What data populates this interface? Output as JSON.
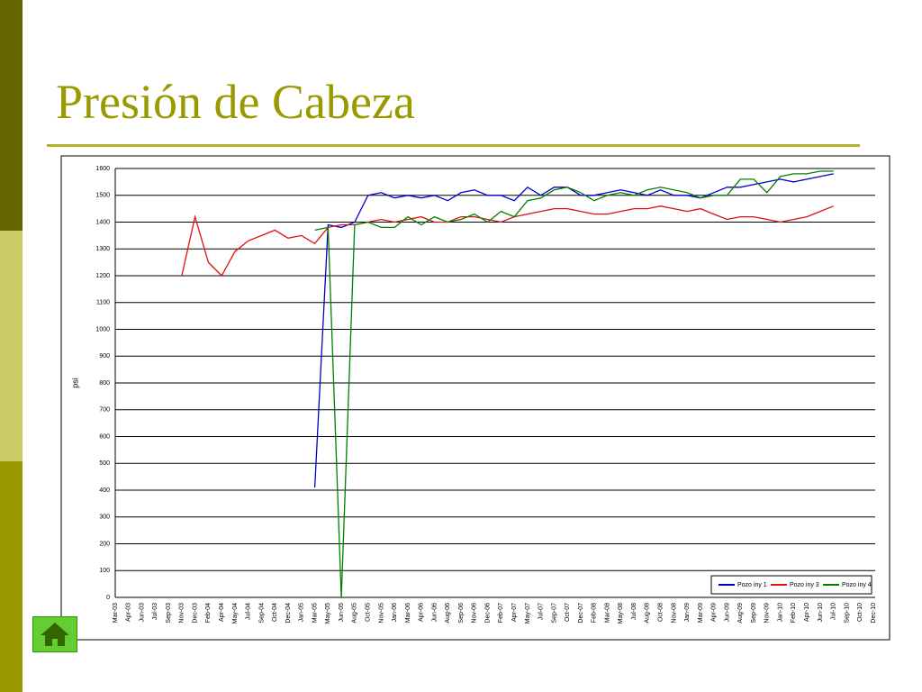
{
  "slide_title": "Presión de Cabeza",
  "chart_data": {
    "type": "line",
    "y_label": "psi",
    "categories": [
      "Mar-03",
      "Apr-03",
      "Jun-03",
      "Jul-03",
      "Sep-03",
      "Nov-03",
      "Dec-03",
      "Feb-04",
      "Apr-04",
      "May-04",
      "Jul-04",
      "Sep-04",
      "Oct-04",
      "Dec-04",
      "Jan-05",
      "Mar-05",
      "May-05",
      "Jun-05",
      "Aug-05",
      "Oct-05",
      "Nov-05",
      "Jan-06",
      "Mar-06",
      "Apr-06",
      "Jun-06",
      "Aug-06",
      "Sep-06",
      "Nov-06",
      "Dec-06",
      "Feb-07",
      "Apr-07",
      "May-07",
      "Jul-07",
      "Sep-07",
      "Oct-07",
      "Dec-07",
      "Feb-08",
      "Mar-08",
      "May-08",
      "Jul-08",
      "Aug-08",
      "Oct-08",
      "Nov-08",
      "Jan-09",
      "Mar-09",
      "Apr-09",
      "Jun-09",
      "Aug-09",
      "Sep-09",
      "Nov-09",
      "Jan-10",
      "Feb-10",
      "Apr-10",
      "Jun-10",
      "Jul-10",
      "Sep-10",
      "Oct-10",
      "Dec-10"
    ],
    "series": [
      {
        "name": "Pozo iny 1",
        "color": "#0000cc",
        "values": [
          null,
          null,
          null,
          null,
          null,
          null,
          null,
          null,
          null,
          null,
          null,
          null,
          null,
          null,
          null,
          410,
          1390,
          1380,
          1400,
          1500,
          1510,
          1490,
          1500,
          1490,
          1500,
          1480,
          1510,
          1520,
          1500,
          1500,
          1480,
          1530,
          1500,
          1530,
          1530,
          1500,
          1500,
          1510,
          1520,
          1510,
          1500,
          1520,
          1500,
          1500,
          1490,
          1510,
          1530,
          1530,
          1540,
          1550,
          1560,
          1550,
          1560,
          1570,
          1580,
          null,
          null,
          null
        ]
      },
      {
        "name": "Pozo iny 3",
        "color": "#e01010",
        "values": [
          null,
          null,
          null,
          null,
          null,
          1200,
          1420,
          1250,
          1200,
          1290,
          1330,
          1350,
          1370,
          1340,
          1350,
          1320,
          1380,
          1390,
          1390,
          1400,
          1410,
          1400,
          1410,
          1420,
          1400,
          1400,
          1420,
          1420,
          1410,
          1400,
          1420,
          1430,
          1440,
          1450,
          1450,
          1440,
          1430,
          1430,
          1440,
          1450,
          1450,
          1460,
          1450,
          1440,
          1450,
          1430,
          1410,
          1420,
          1420,
          1410,
          1400,
          1410,
          1420,
          1440,
          1460,
          null,
          null,
          null
        ]
      },
      {
        "name": "Pozo iny 4",
        "color": "#008000",
        "values": [
          null,
          null,
          null,
          null,
          null,
          null,
          null,
          null,
          null,
          null,
          null,
          null,
          null,
          null,
          null,
          1370,
          1380,
          0,
          1390,
          1400,
          1380,
          1380,
          1420,
          1390,
          1420,
          1400,
          1410,
          1430,
          1400,
          1440,
          1420,
          1480,
          1490,
          1520,
          1530,
          1510,
          1480,
          1500,
          1510,
          1500,
          1520,
          1530,
          1520,
          1510,
          1490,
          1500,
          1500,
          1560,
          1560,
          1510,
          1570,
          1580,
          1580,
          1590,
          1590,
          null,
          null,
          null
        ]
      }
    ],
    "ylim": [
      0,
      1600
    ],
    "yticks": [
      0,
      100,
      200,
      300,
      400,
      500,
      600,
      700,
      800,
      900,
      1000,
      1100,
      1200,
      1300,
      1400,
      1500,
      1600
    ],
    "grid": true,
    "legend": "lower right"
  }
}
